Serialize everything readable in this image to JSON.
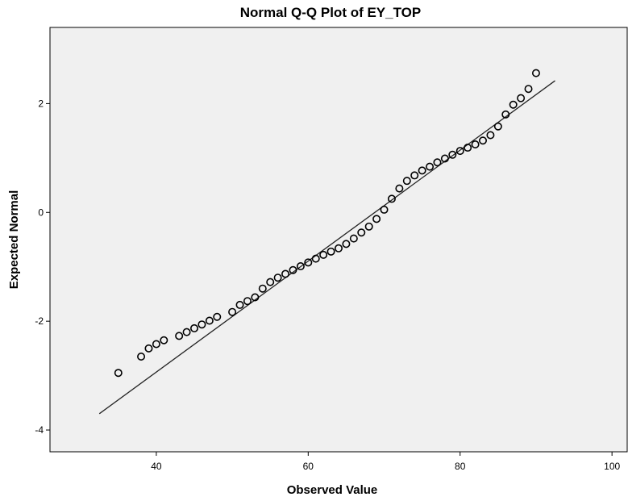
{
  "chart_data": {
    "type": "scatter",
    "title": "Normal Q-Q Plot of EY_TOP",
    "xlabel": "Observed Value",
    "ylabel": "Expected Normal",
    "xlim": [
      26,
      102
    ],
    "ylim": [
      -4.4,
      3.4
    ],
    "xticks": [
      40,
      60,
      80,
      100
    ],
    "xtick_labels": [
      "40",
      "60",
      "80",
      "100"
    ],
    "yticks": [
      -4,
      -2,
      0,
      2
    ],
    "ytick_labels": [
      "-4",
      "-2",
      "0",
      "2"
    ],
    "grid": false,
    "plot_background": "#f0f0f0",
    "marker_color": "#000000",
    "reference_line": {
      "x": [
        32.5,
        92.5
      ],
      "y": [
        -3.7,
        2.42
      ]
    },
    "points": [
      {
        "x": 35,
        "y": -2.95
      },
      {
        "x": 38,
        "y": -2.65
      },
      {
        "x": 39,
        "y": -2.5
      },
      {
        "x": 40,
        "y": -2.42
      },
      {
        "x": 41,
        "y": -2.35
      },
      {
        "x": 43,
        "y": -2.27
      },
      {
        "x": 44,
        "y": -2.2
      },
      {
        "x": 45,
        "y": -2.13
      },
      {
        "x": 46,
        "y": -2.06
      },
      {
        "x": 47,
        "y": -1.99
      },
      {
        "x": 48,
        "y": -1.92
      },
      {
        "x": 50,
        "y": -1.83
      },
      {
        "x": 51,
        "y": -1.7
      },
      {
        "x": 52,
        "y": -1.63
      },
      {
        "x": 53,
        "y": -1.56
      },
      {
        "x": 54,
        "y": -1.4
      },
      {
        "x": 55,
        "y": -1.28
      },
      {
        "x": 56,
        "y": -1.2
      },
      {
        "x": 57,
        "y": -1.13
      },
      {
        "x": 58,
        "y": -1.06
      },
      {
        "x": 59,
        "y": -0.99
      },
      {
        "x": 60,
        "y": -0.92
      },
      {
        "x": 61,
        "y": -0.85
      },
      {
        "x": 62,
        "y": -0.78
      },
      {
        "x": 63,
        "y": -0.72
      },
      {
        "x": 64,
        "y": -0.66
      },
      {
        "x": 65,
        "y": -0.58
      },
      {
        "x": 66,
        "y": -0.48
      },
      {
        "x": 67,
        "y": -0.37
      },
      {
        "x": 68,
        "y": -0.26
      },
      {
        "x": 69,
        "y": -0.12
      },
      {
        "x": 70,
        "y": 0.05
      },
      {
        "x": 71,
        "y": 0.25
      },
      {
        "x": 72,
        "y": 0.44
      },
      {
        "x": 73,
        "y": 0.58
      },
      {
        "x": 74,
        "y": 0.68
      },
      {
        "x": 75,
        "y": 0.77
      },
      {
        "x": 76,
        "y": 0.84
      },
      {
        "x": 77,
        "y": 0.92
      },
      {
        "x": 78,
        "y": 0.99
      },
      {
        "x": 79,
        "y": 1.06
      },
      {
        "x": 80,
        "y": 1.13
      },
      {
        "x": 81,
        "y": 1.19
      },
      {
        "x": 82,
        "y": 1.25
      },
      {
        "x": 83,
        "y": 1.32
      },
      {
        "x": 84,
        "y": 1.42
      },
      {
        "x": 85,
        "y": 1.58
      },
      {
        "x": 86,
        "y": 1.8
      },
      {
        "x": 87,
        "y": 1.98
      },
      {
        "x": 88,
        "y": 2.1
      },
      {
        "x": 89,
        "y": 2.27
      },
      {
        "x": 90,
        "y": 2.56
      }
    ]
  }
}
